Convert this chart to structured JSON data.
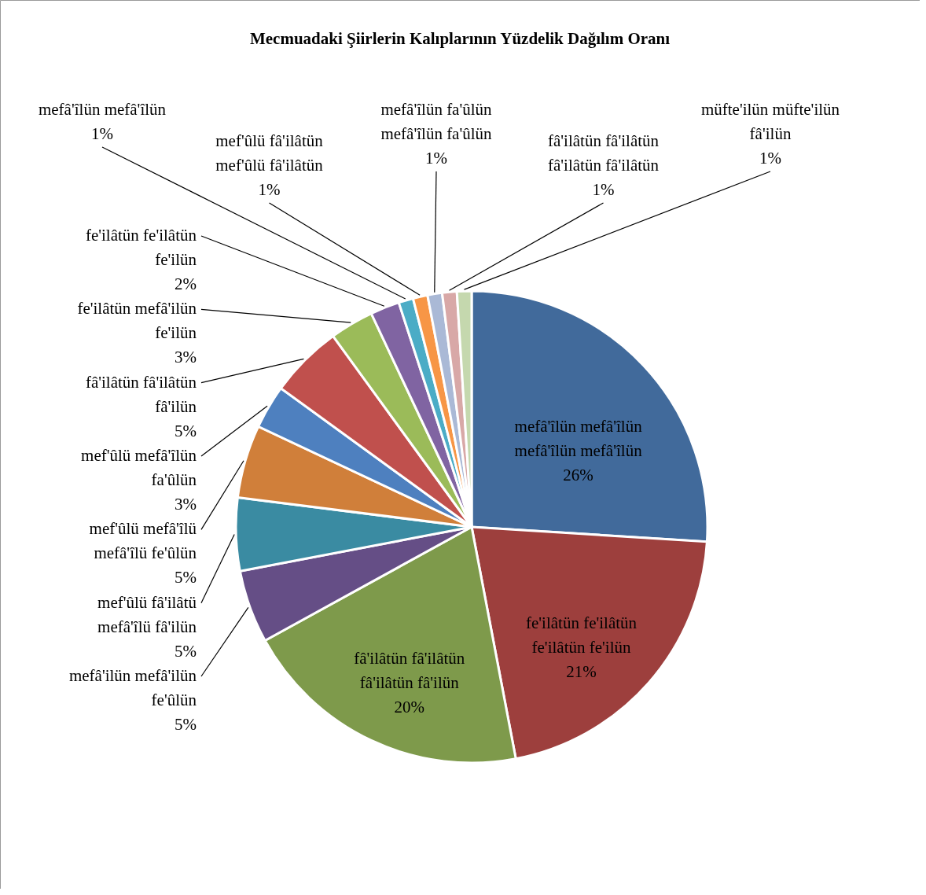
{
  "chart_data": {
    "type": "pie",
    "title": "Mecmuadaki Şiirlerin Kalıplarının Yüzdelik Dağılım Oranı",
    "categories": [
      "mefâ'îlün mefâ'îlün mefâ'îlün mefâ'îlün",
      "fe'ilâtün fe'ilâtün fe'ilâtün fe'ilün",
      "fâ'ilâtün fâ'ilâtün fâ'ilâtün fâ'ilün",
      "mefâ'ilün mefâ'ilün fe'ûlün",
      "mef'ûlü fâ'ilâtü mefâ'îlü fâ'ilün",
      "mef'ûlü mefâ'îlü mefâ'îlü fe'ûlün",
      "mef'ûlü mefâ'îlün fa'ûlün",
      "fâ'ilâtün fâ'ilâtün fâ'ilün",
      "fe'ilâtün mefâ'ilün fe'ilün",
      "fe'ilâtün fe'ilâtün fe'ilün",
      "mefâ'îlün mefâ'îlün",
      "mef'ûlü fâ'ilâtün mef'ûlü fâ'ilâtün",
      "mefâ'îlün fa'ûlün mefâ'îlün fa'ûlün",
      "fâ'ilâtün fâ'ilâtün fâ'ilâtün fâ'ilâtün",
      "müfte'ilün müfte'ilün fâ'ilün"
    ],
    "values": [
      26,
      21,
      20,
      5,
      5,
      5,
      3,
      5,
      3,
      2,
      1,
      1,
      1,
      1,
      1
    ],
    "value_labels": [
      "26%",
      "21%",
      "20%",
      "5%",
      "5%",
      "5%",
      "3%",
      "5%",
      "3%",
      "2%",
      "1%",
      "1%",
      "1%",
      "1%",
      "1%"
    ],
    "colors": [
      "#416a9b",
      "#9d3f3d",
      "#7e9a4b",
      "#654e86",
      "#3a8ba2",
      "#d07f3a",
      "#4e80bf",
      "#c0504d",
      "#9bbb59",
      "#8064a2",
      "#4bacc6",
      "#f79646",
      "#aab9d6",
      "#d8a8a7",
      "#c5d8ae"
    ]
  }
}
